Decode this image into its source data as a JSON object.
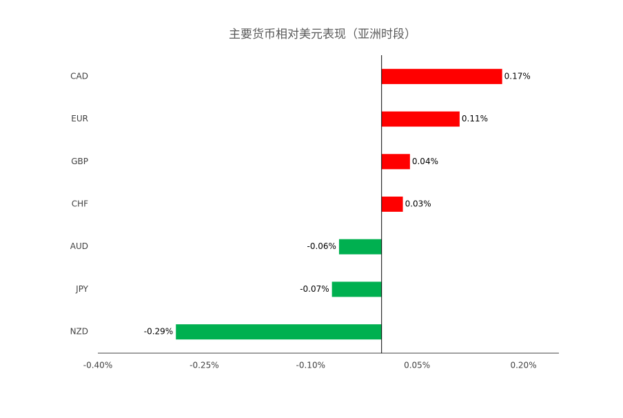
{
  "chart_data": {
    "type": "bar",
    "orientation": "horizontal",
    "title": "主要货币相对美元表现（亚洲时段）",
    "categories": [
      "CAD",
      "EUR",
      "GBP",
      "CHF",
      "AUD",
      "JPY",
      "NZD"
    ],
    "values": [
      0.17,
      0.11,
      0.04,
      0.03,
      -0.06,
      -0.07,
      -0.29
    ],
    "value_labels": [
      "0.17%",
      "0.11%",
      "0.04%",
      "0.03%",
      "-0.06%",
      "-0.07%",
      "-0.29%"
    ],
    "colors": [
      "#ff0000",
      "#ff0000",
      "#ff0000",
      "#ff0000",
      "#00b050",
      "#00b050",
      "#00b050"
    ],
    "xlim": [
      -0.4,
      0.25
    ],
    "xticks": [
      {
        "value": -0.4,
        "label": "-0.40%"
      },
      {
        "value": -0.25,
        "label": "-0.25%"
      },
      {
        "value": -0.1,
        "label": "-0.10%"
      },
      {
        "value": 0.05,
        "label": "0.05%"
      },
      {
        "value": 0.2,
        "label": "0.20%"
      }
    ],
    "grid": false
  }
}
